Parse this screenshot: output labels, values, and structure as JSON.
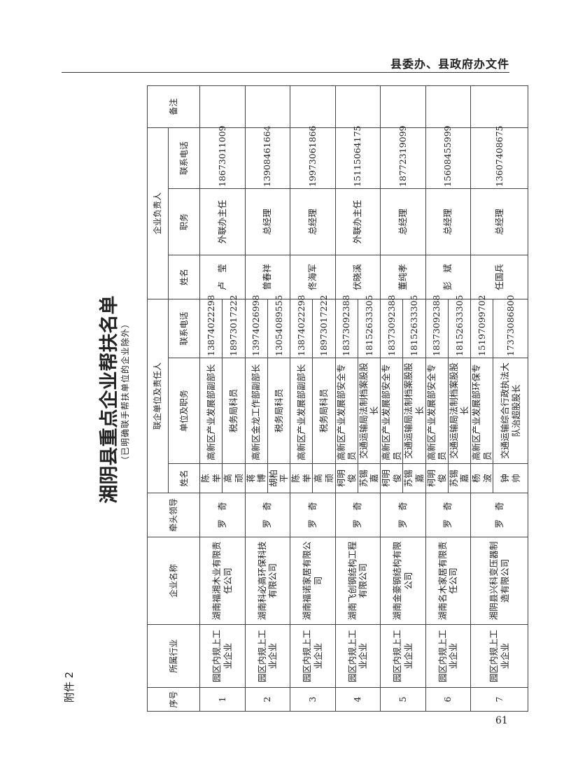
{
  "header": {
    "text": "县委办、县政府办文件"
  },
  "page_number": "61",
  "attachment_label": "附件 2",
  "title": "湘阴县重点企业帮扶名单",
  "subtitle": "（已明确联手帮扶单位的企业除外）",
  "table": {
    "headers": {
      "seq": "序号",
      "industry": "所属行业",
      "company": "企业名称",
      "leader": "牵头领导",
      "liaison_group": "联企单位及责任人",
      "liaison_name": "姓名",
      "liaison_unit": "单位及职务",
      "liaison_phone": "联系电话",
      "owner_group": "企业负责人",
      "owner_name": "姓名",
      "owner_title": "职务",
      "owner_phone": "联系电话",
      "remarks": "备注"
    },
    "rows": [
      {
        "seq": "1",
        "industry": "园区内规上工业企业",
        "company": "湖南福湘木业有限责任公司",
        "leader": "罗　奇",
        "liaisons": [
          {
            "name": "陈　举",
            "unit": "高新区产业发展部副部长",
            "phone": "13874022298"
          },
          {
            "name": "高　顽",
            "unit": "税务局科员",
            "phone": "18973017222"
          }
        ],
        "owner_name": "卢　莹",
        "owner_title": "外联办主任",
        "owner_phone": "18673011009",
        "remarks": ""
      },
      {
        "seq": "2",
        "industry": "园区内规上工业企业",
        "company": "湖南科必高环保科技有限公司",
        "leader": "罗　奇",
        "liaisons": [
          {
            "name": "蒋　博",
            "unit": "高新区金龙工作部副部长",
            "phone": "13974026998"
          },
          {
            "name": "胡柏平",
            "unit": "税务局科员",
            "phone": "13054089555"
          }
        ],
        "owner_name": "曾春祥",
        "owner_title": "总经理",
        "owner_phone": "13908461664",
        "remarks": ""
      },
      {
        "seq": "3",
        "industry": "园区内规上工业企业",
        "company": "湖南福诺家居有限公司",
        "leader": "罗　奇",
        "liaisons": [
          {
            "name": "陈　举",
            "unit": "高新区产业发展部副部长",
            "phone": "13874022298"
          },
          {
            "name": "高　顽",
            "unit": "税务局科员",
            "phone": "18973017222"
          }
        ],
        "owner_name": "佟海军",
        "owner_title": "总经理",
        "owner_phone": "19973061866",
        "remarks": ""
      },
      {
        "seq": "4",
        "industry": "园区内规上工业企业",
        "company": "湖南飞创钢结构工程有限公司",
        "leader": "罗　奇",
        "liaisons": [
          {
            "name": "柯明俊",
            "unit": "高新区产业发展部安全专员",
            "phone": "18373092388"
          },
          {
            "name": "苏锡嘉",
            "unit": "交通运输局法制档案股股长",
            "phone": "18152633305"
          }
        ],
        "owner_name": "伏晓溪",
        "owner_title": "外联办主任",
        "owner_phone": "15115064175",
        "remarks": ""
      },
      {
        "seq": "5",
        "industry": "园区内规上工业企业",
        "company": "湖南金豪钢结构有限公司",
        "leader": "罗　奇",
        "liaisons": [
          {
            "name": "柯明俊",
            "unit": "高新区产业发展部安全专员",
            "phone": "18373092388"
          },
          {
            "name": "苏锡嘉",
            "unit": "交通运输局法制档案股股长",
            "phone": "18152633305"
          }
        ],
        "owner_name": "董纯孝",
        "owner_title": "总经理",
        "owner_phone": "18772319099",
        "remarks": ""
      },
      {
        "seq": "6",
        "industry": "园区内规上工业企业",
        "company": "湖南名木家居有限责任公司",
        "leader": "罗　奇",
        "liaisons": [
          {
            "name": "柯明俊",
            "unit": "高新区产业发展部安全专员",
            "phone": "18373092388"
          },
          {
            "name": "苏锡嘉",
            "unit": "交通运输局法制档案股股长",
            "phone": "18152633305"
          }
        ],
        "owner_name": "彭　斌",
        "owner_title": "总经理",
        "owner_phone": "15608455999",
        "remarks": ""
      },
      {
        "seq": "7",
        "industry": "园区内规上工业企业",
        "company": "湘阴县兴科变压器制造有限公司",
        "leader": "罗　奇",
        "liaisons": [
          {
            "name": "杨　波",
            "unit": "高新区产业发展部环保专员",
            "phone": "15197099702"
          },
          {
            "name": "钟　帅",
            "unit": "交通运输综合行政执法大队治超股股长",
            "phone": "17373086800"
          }
        ],
        "owner_name": "任国兵",
        "owner_title": "总经理",
        "owner_phone": "13607408675",
        "remarks": ""
      }
    ]
  }
}
